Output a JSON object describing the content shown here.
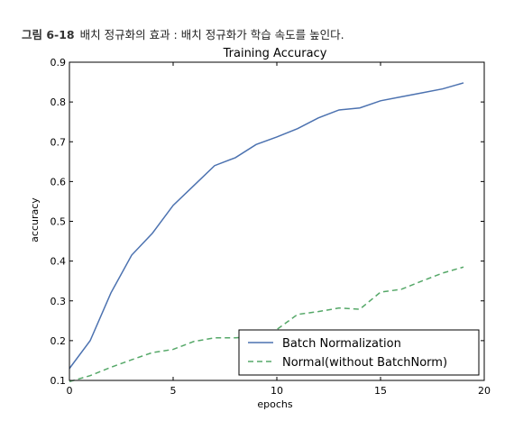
{
  "caption": {
    "figure_number": "그림 6-18",
    "text": "배치 정규화의 효과 : 배치 정규화가 학습 속도를 높인다."
  },
  "chart_data": {
    "type": "line",
    "title": "Training Accuracy",
    "xlabel": "epochs",
    "ylabel": "accuracy",
    "xlim": [
      0,
      20
    ],
    "ylim": [
      0.1,
      0.9
    ],
    "xticks": [
      0,
      5,
      10,
      15,
      20
    ],
    "yticks": [
      0.1,
      0.2,
      0.3,
      0.4,
      0.5,
      0.6,
      0.7,
      0.8,
      0.9
    ],
    "grid": false,
    "legend_position": "lower-right",
    "x": [
      0,
      1,
      2,
      3,
      4,
      5,
      6,
      7,
      8,
      9,
      10,
      11,
      12,
      13,
      14,
      15,
      16,
      17,
      18,
      19
    ],
    "series": [
      {
        "name": "Batch Normalization",
        "color": "#4c72b0",
        "style": "solid",
        "values": [
          0.13,
          0.2,
          0.32,
          0.415,
          0.47,
          0.54,
          0.59,
          0.64,
          0.66,
          0.693,
          0.712,
          0.733,
          0.76,
          0.78,
          0.785,
          0.803,
          0.813,
          0.823,
          0.833,
          0.848
        ]
      },
      {
        "name": "Normal(without BatchNorm)",
        "color": "#55a868",
        "style": "dashed",
        "values": [
          0.097,
          0.112,
          0.133,
          0.152,
          0.17,
          0.178,
          0.198,
          0.207,
          0.207,
          0.21,
          0.228,
          0.266,
          0.273,
          0.282,
          0.279,
          0.322,
          0.329,
          0.35,
          0.37,
          0.385
        ]
      }
    ]
  }
}
